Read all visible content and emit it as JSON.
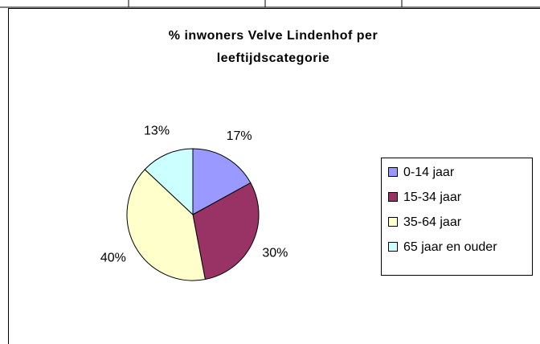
{
  "chart_data": {
    "type": "pie",
    "title": [
      "% inwoners Velve Lindenhof per",
      "leeftijdscategorie"
    ],
    "categories": [
      "0-14 jaar",
      "15-34 jaar",
      "35-64 jaar",
      "65 jaar en ouder"
    ],
    "values": [
      17,
      30,
      40,
      13
    ],
    "value_labels": [
      "17%",
      "30%",
      "40%",
      "13%"
    ],
    "colors": [
      "#9999ff",
      "#993366",
      "#ffffcc",
      "#ccffff"
    ],
    "legend": "right"
  }
}
